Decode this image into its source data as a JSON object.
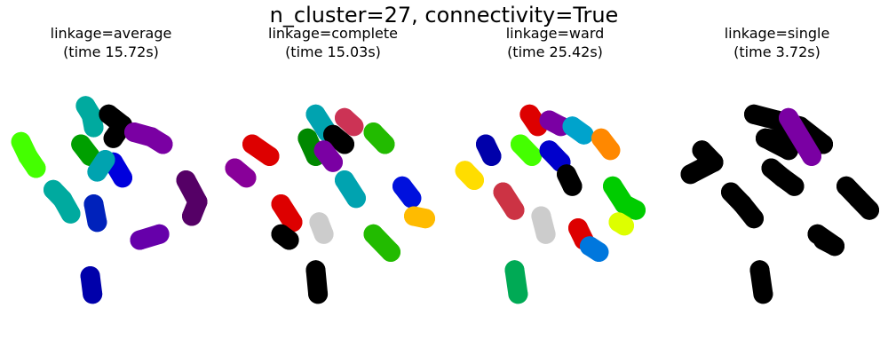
{
  "figure_title": "n_cluster=27, connectivity=True",
  "chart_data": [
    {
      "type": "scatter",
      "title_line1": "linkage=average",
      "title_line2": "(time 15.72s)",
      "linkage": "average",
      "time_s": 15.72,
      "axes_visible": false,
      "clusters": [
        {
          "x": [
            -0.62,
            -0.57,
            -0.55
          ],
          "y": [
            0.52,
            0.44,
            0.34
          ],
          "color": "#00aa9f"
        },
        {
          "x": [
            -0.66,
            -0.58
          ],
          "y": [
            0.2,
            0.1
          ],
          "color": "#009f00"
        },
        {
          "x": [
            -0.42,
            -0.3,
            -0.38
          ],
          "y": [
            0.45,
            0.36,
            0.25
          ],
          "color": "#000000"
        },
        {
          "x": [
            -0.2,
            -0.05,
            0.05
          ],
          "y": [
            0.3,
            0.26,
            0.2
          ],
          "color": "#7a00a3"
        },
        {
          "x": [
            -0.38,
            -0.3
          ],
          "y": [
            0.05,
            -0.08
          ],
          "color": "#0000dd"
        },
        {
          "x": [
            -0.52,
            -0.45
          ],
          "y": [
            -0.03,
            0.07
          ],
          "color": "#00a3b0"
        },
        {
          "x": [
            -1.18,
            -1.12,
            -1.05
          ],
          "y": [
            0.22,
            0.1,
            0.0
          ],
          "color": "#44ff00"
        },
        {
          "x": [
            -0.9,
            -0.82,
            -0.75
          ],
          "y": [
            -0.18,
            -0.26,
            -0.38
          ],
          "color": "#00aa9f"
        },
        {
          "x": [
            -0.55,
            -0.52
          ],
          "y": [
            -0.3,
            -0.45
          ],
          "color": "#0022bb"
        },
        {
          "x": [
            -0.15,
            0.02
          ],
          "y": [
            -0.6,
            -0.55
          ],
          "color": "#6600aa"
        },
        {
          "x": [
            0.25,
            0.35,
            0.3
          ],
          "y": [
            -0.1,
            -0.28,
            -0.4
          ],
          "color": "#550066"
        },
        {
          "x": [
            -0.58,
            -0.56
          ],
          "y": [
            -0.9,
            -1.05
          ],
          "color": "#0000aa"
        }
      ]
    },
    {
      "type": "scatter",
      "title_line1": "linkage=complete",
      "title_line2": "(time 15.03s)",
      "linkage": "complete",
      "time_s": 15.03,
      "axes_visible": false,
      "clusters": [
        {
          "x": [
            -0.55,
            -0.45
          ],
          "y": [
            0.45,
            0.3
          ],
          "color": "#00a3b0"
        },
        {
          "x": [
            -0.3,
            -0.22
          ],
          "y": [
            0.42,
            0.35
          ],
          "color": "#cc3355"
        },
        {
          "x": [
            -0.05,
            0.05
          ],
          "y": [
            0.3,
            0.2
          ],
          "color": "#22bb00"
        },
        {
          "x": [
            -0.4,
            -0.3
          ],
          "y": [
            0.28,
            0.2
          ],
          "color": "#000000"
        },
        {
          "x": [
            -0.62,
            -0.55
          ],
          "y": [
            0.25,
            0.1
          ],
          "color": "#008800"
        },
        {
          "x": [
            -0.48,
            -0.4
          ],
          "y": [
            0.15,
            0.05
          ],
          "color": "#7a00a3"
        },
        {
          "x": [
            -1.1,
            -0.95
          ],
          "y": [
            0.2,
            0.1
          ],
          "color": "#dd0000"
        },
        {
          "x": [
            -1.25,
            -1.15
          ],
          "y": [
            0.0,
            -0.08
          ],
          "color": "#880099"
        },
        {
          "x": [
            -0.3,
            -0.2
          ],
          "y": [
            -0.1,
            -0.25
          ],
          "color": "#00a3b0"
        },
        {
          "x": [
            0.2,
            0.28
          ],
          "y": [
            -0.15,
            -0.25
          ],
          "color": "#0011dd"
        },
        {
          "x": [
            0.3,
            0.4
          ],
          "y": [
            -0.4,
            -0.42
          ],
          "color": "#ffbb00"
        },
        {
          "x": [
            -0.85,
            -0.75
          ],
          "y": [
            -0.3,
            -0.45
          ],
          "color": "#dd0000"
        },
        {
          "x": [
            -0.85,
            -0.78
          ],
          "y": [
            -0.55,
            -0.6
          ],
          "color": "#000000"
        },
        {
          "x": [
            -0.52,
            -0.48
          ],
          "y": [
            -0.45,
            -0.55
          ],
          "color": "#cccccc"
        },
        {
          "x": [
            -0.05,
            0.1
          ],
          "y": [
            -0.55,
            -0.7
          ],
          "color": "#22bb00"
        },
        {
          "x": [
            -0.55,
            -0.53
          ],
          "y": [
            -0.85,
            -1.05
          ],
          "color": "#000000"
        }
      ]
    },
    {
      "type": "scatter",
      "title_line1": "linkage=ward",
      "title_line2": "(time 25.42s)",
      "linkage": "ward",
      "time_s": 25.42,
      "axes_visible": false,
      "clusters": [
        {
          "x": [
            -0.62,
            -0.55
          ],
          "y": [
            0.45,
            0.35
          ],
          "color": "#dd0000"
        },
        {
          "x": [
            -0.45,
            -0.35
          ],
          "y": [
            0.4,
            0.35
          ],
          "color": "#7a00a3"
        },
        {
          "x": [
            -0.25,
            -0.15
          ],
          "y": [
            0.35,
            0.28
          ],
          "color": "#00a3cc"
        },
        {
          "x": [
            0.0,
            0.08
          ],
          "y": [
            0.25,
            0.15
          ],
          "color": "#ff8800"
        },
        {
          "x": [
            -0.7,
            -0.6
          ],
          "y": [
            0.2,
            0.1
          ],
          "color": "#44ff00"
        },
        {
          "x": [
            -0.45,
            -0.35
          ],
          "y": [
            0.15,
            0.05
          ],
          "color": "#0000cc"
        },
        {
          "x": [
            -0.3,
            -0.25
          ],
          "y": [
            -0.05,
            -0.15
          ],
          "color": "#000000"
        },
        {
          "x": [
            -1.0,
            -0.95
          ],
          "y": [
            0.2,
            0.1
          ],
          "color": "#0000aa"
        },
        {
          "x": [
            -1.18,
            -1.1
          ],
          "y": [
            -0.02,
            -0.1
          ],
          "color": "#ffdd00"
        },
        {
          "x": [
            0.1,
            0.2,
            0.3
          ],
          "y": [
            -0.15,
            -0.3,
            -0.35
          ],
          "color": "#00cc00"
        },
        {
          "x": [
            -0.85,
            -0.75
          ],
          "y": [
            -0.2,
            -0.35
          ],
          "color": "#cc3344"
        },
        {
          "x": [
            -0.52,
            -0.48
          ],
          "y": [
            -0.4,
            -0.55
          ],
          "color": "#cccccc"
        },
        {
          "x": [
            -0.2,
            -0.15
          ],
          "y": [
            -0.5,
            -0.6
          ],
          "color": "#dd0000"
        },
        {
          "x": [
            -0.1,
            -0.02
          ],
          "y": [
            -0.65,
            -0.7
          ],
          "color": "#0077dd"
        },
        {
          "x": [
            0.15,
            0.2
          ],
          "y": [
            -0.45,
            -0.48
          ],
          "color": "#ddff00"
        },
        {
          "x": [
            -0.75,
            -0.72
          ],
          "y": [
            -0.85,
            -1.05
          ],
          "color": "#00aa55"
        }
      ]
    },
    {
      "type": "scatter",
      "title_line1": "linkage=single",
      "title_line2": "(time 3.72s)",
      "linkage": "single",
      "time_s": 3.72,
      "axes_visible": false,
      "clusters": [
        {
          "x": [
            -0.6,
            -0.4,
            -0.2,
            0.0,
            -0.5,
            -0.3
          ],
          "y": [
            0.45,
            0.4,
            0.35,
            0.2,
            0.25,
            0.15
          ],
          "color": "#000000"
        },
        {
          "x": [
            -0.45,
            -0.35,
            -0.25
          ],
          "y": [
            0.0,
            -0.08,
            -0.15
          ],
          "color": "#000000"
        },
        {
          "x": [
            -1.05,
            -0.95,
            -1.15
          ],
          "y": [
            0.15,
            0.05,
            -0.05
          ],
          "color": "#000000"
        },
        {
          "x": [
            -0.8,
            -0.7,
            -0.6
          ],
          "y": [
            -0.2,
            -0.3,
            -0.42
          ],
          "color": "#000000"
        },
        {
          "x": [
            0.2,
            0.3,
            0.4
          ],
          "y": [
            -0.15,
            -0.25,
            -0.35
          ],
          "color": "#000000"
        },
        {
          "x": [
            -0.05,
            0.1,
            0.0
          ],
          "y": [
            -0.55,
            -0.65,
            -0.6
          ],
          "color": "#000000"
        },
        {
          "x": [
            -0.55,
            -0.52
          ],
          "y": [
            -0.85,
            -1.05
          ],
          "color": "#000000"
        },
        {
          "x": [
            -0.3,
            -0.1
          ],
          "y": [
            0.42,
            0.1
          ],
          "color": "#7a00a3"
        }
      ]
    }
  ]
}
